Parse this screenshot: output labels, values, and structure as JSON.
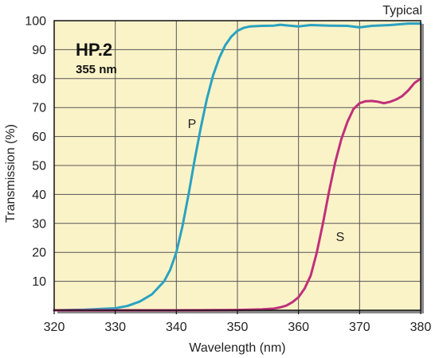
{
  "chart_data": {
    "type": "line",
    "title": "HP.2",
    "subtitle": "355 nm",
    "note": "Typical",
    "xlabel": "Wavelength (nm)",
    "ylabel": "Transmission (%)",
    "xlim": [
      320,
      380
    ],
    "ylim": [
      0,
      100
    ],
    "xticks": [
      320,
      330,
      340,
      350,
      360,
      370,
      380
    ],
    "yticks": [
      10,
      20,
      30,
      40,
      50,
      60,
      70,
      80,
      90,
      100
    ],
    "grid": true,
    "colors": {
      "background": "#fbf3c8",
      "grid": "#555555",
      "axis": "#111111",
      "shadow": "#8a8a8a"
    },
    "series": [
      {
        "name": "P",
        "color": "#2aa2c2",
        "x": [
          320,
          325,
          330,
          332,
          334,
          336,
          338,
          339,
          340,
          341,
          342,
          343,
          344,
          345,
          346,
          347,
          348,
          349,
          350,
          351,
          352,
          354,
          356,
          357,
          358,
          360,
          362,
          365,
          368,
          370,
          372,
          375,
          378,
          380
        ],
        "y": [
          0,
          0.2,
          0.7,
          1.5,
          3,
          5.5,
          10,
          14,
          20,
          29,
          40,
          52,
          63,
          73,
          81,
          87,
          91.5,
          94.5,
          96.5,
          97.5,
          98,
          98.2,
          98.3,
          98.6,
          98.4,
          98,
          98.5,
          98.3,
          98.2,
          97.7,
          98.2,
          98.5,
          99,
          99
        ]
      },
      {
        "name": "S",
        "color": "#c0307a",
        "x": [
          320,
          330,
          340,
          350,
          354,
          356,
          357,
          358,
          359,
          360,
          361,
          362,
          363,
          364,
          365,
          366,
          367,
          368,
          369,
          370,
          371,
          372,
          373,
          374,
          375,
          376,
          377,
          378,
          379,
          380
        ],
        "y": [
          0,
          0,
          0,
          0.1,
          0.3,
          0.6,
          1,
          1.6,
          2.8,
          4.5,
          7.5,
          12,
          20,
          30,
          41,
          51,
          59,
          65,
          69.5,
          71.5,
          72.2,
          72.3,
          72,
          71.5,
          72,
          72.8,
          74,
          76,
          78.5,
          80
        ]
      }
    ]
  }
}
